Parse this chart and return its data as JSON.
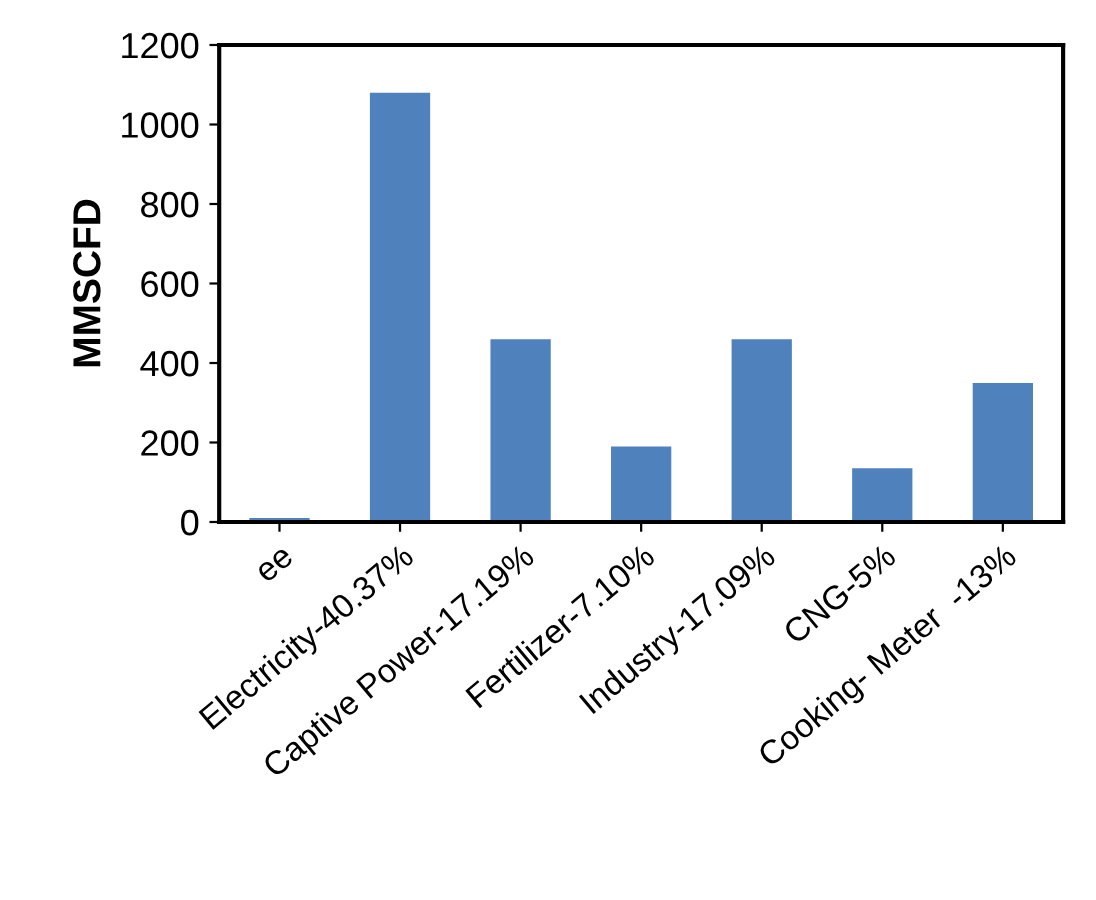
{
  "chart_data": {
    "type": "bar",
    "ylabel": "MMSCFD",
    "categories": [
      "ee",
      "Electricity-40.37%",
      "Captive Power-17.19%",
      "Fertilizer-7.10%",
      "Industry-17.09%",
      "CNG-5%",
      "Cooking- Meter  -13%"
    ],
    "values": [
      10,
      1080,
      460,
      190,
      460,
      135,
      350
    ],
    "color": "#4f81bd",
    "ylim": [
      0,
      1200
    ],
    "yticks": [
      0,
      200,
      400,
      600,
      800,
      1000,
      1200
    ],
    "grid": false
  }
}
